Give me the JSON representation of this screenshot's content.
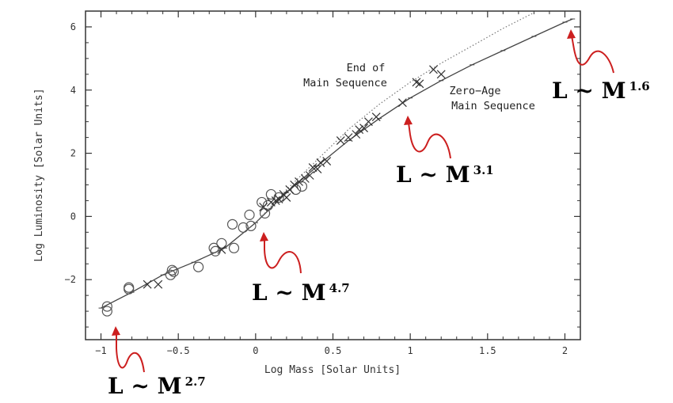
{
  "chart_data": {
    "type": "scatter",
    "xlabel": "Log Mass [Solar Units]",
    "ylabel": "Log Luminosity [Solar Units]",
    "xlim": [
      -1.1,
      2.1
    ],
    "ylim": [
      -3.9,
      6.5
    ],
    "xticks": [
      -1,
      -0.5,
      0,
      0.5,
      1,
      1.5,
      2
    ],
    "xtick_labels": [
      "−1",
      "−0.5",
      "0",
      "0.5",
      "1",
      "1.5",
      "2"
    ],
    "yticks": [
      -2,
      0,
      2,
      4,
      6
    ],
    "ytick_labels": [
      "−2",
      "0",
      "2",
      "4",
      "6"
    ],
    "curves": [
      {
        "label_lines": [
          "Zero−Age",
          "Main Sequence"
        ],
        "style": "solid",
        "x": [
          -1.0,
          -0.8,
          -0.6,
          -0.4,
          -0.2,
          0.0,
          0.2,
          0.4,
          0.6,
          0.8,
          1.0,
          1.2,
          1.4,
          1.6,
          1.8,
          2.0,
          2.05
        ],
        "y": [
          -2.9,
          -2.4,
          -1.85,
          -1.45,
          -1.0,
          -0.2,
          0.75,
          1.6,
          2.4,
          3.1,
          3.75,
          4.3,
          4.8,
          5.25,
          5.7,
          6.15,
          6.25
        ]
      },
      {
        "label_lines": [
          "End of",
          "Main Sequence"
        ],
        "style": "dotted",
        "x": [
          0.0,
          0.2,
          0.4,
          0.6,
          0.8,
          1.0,
          1.2,
          1.4,
          1.6,
          1.8
        ],
        "y": [
          -0.2,
          0.85,
          1.8,
          2.75,
          3.55,
          4.25,
          4.85,
          5.4,
          5.95,
          6.45
        ]
      }
    ],
    "series": [
      {
        "marker": "circle",
        "points": [
          [
            -0.96,
            -2.85
          ],
          [
            -0.96,
            -3.0
          ],
          [
            -0.82,
            -2.25
          ],
          [
            -0.82,
            -2.3
          ],
          [
            -0.54,
            -1.7
          ],
          [
            -0.53,
            -1.75
          ],
          [
            -0.55,
            -1.85
          ],
          [
            -0.37,
            -1.6
          ],
          [
            -0.27,
            -1.0
          ],
          [
            -0.26,
            -1.1
          ],
          [
            -0.22,
            -0.85
          ],
          [
            -0.14,
            -1.0
          ],
          [
            -0.15,
            -0.25
          ],
          [
            -0.08,
            -0.35
          ],
          [
            -0.03,
            -0.3
          ],
          [
            -0.04,
            0.05
          ],
          [
            0.04,
            0.45
          ],
          [
            0.06,
            0.1
          ],
          [
            0.08,
            0.35
          ],
          [
            0.1,
            0.7
          ],
          [
            0.15,
            0.6
          ],
          [
            0.26,
            0.85
          ],
          [
            0.3,
            0.95
          ]
        ]
      },
      {
        "marker": "cross",
        "points": [
          [
            -0.7,
            -2.15
          ],
          [
            -0.63,
            -2.15
          ],
          [
            -0.22,
            -1.05
          ],
          [
            0.05,
            0.3
          ],
          [
            0.1,
            0.45
          ],
          [
            0.13,
            0.5
          ],
          [
            0.15,
            0.55
          ],
          [
            0.18,
            0.7
          ],
          [
            0.2,
            0.6
          ],
          [
            0.22,
            0.85
          ],
          [
            0.25,
            1.0
          ],
          [
            0.28,
            1.1
          ],
          [
            0.32,
            1.2
          ],
          [
            0.35,
            1.3
          ],
          [
            0.37,
            1.55
          ],
          [
            0.4,
            1.5
          ],
          [
            0.42,
            1.7
          ],
          [
            0.46,
            1.75
          ],
          [
            0.55,
            2.4
          ],
          [
            0.6,
            2.5
          ],
          [
            0.65,
            2.6
          ],
          [
            0.67,
            2.75
          ],
          [
            0.7,
            2.8
          ],
          [
            0.73,
            3.0
          ],
          [
            0.78,
            3.15
          ],
          [
            0.95,
            3.6
          ],
          [
            1.04,
            4.25
          ],
          [
            1.06,
            4.2
          ],
          [
            1.15,
            4.65
          ],
          [
            1.2,
            4.5
          ]
        ]
      }
    ],
    "annotations": [
      {
        "base": "L ~ M",
        "exponent": "1.6"
      },
      {
        "base": "L ~ M",
        "exponent": "3.1"
      },
      {
        "base": "L ~ M",
        "exponent": "4.7"
      },
      {
        "base": "L ~ M",
        "exponent": "2.7"
      }
    ],
    "annotation_color": "#cc1f1f",
    "axis_color": "#333333",
    "grid": false
  }
}
